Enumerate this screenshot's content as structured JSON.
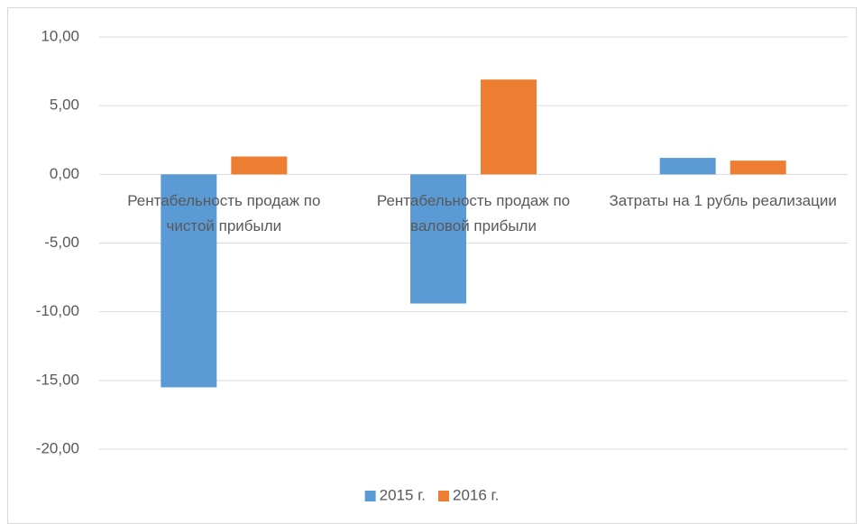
{
  "chart_data": {
    "type": "bar",
    "categories": [
      "Рентабельность продаж по чистой прибыли",
      "Рентабельность продаж по валовой прибыли",
      "Затраты на 1 рубль реализации"
    ],
    "series": [
      {
        "name": "2015 г.",
        "color": "#5b9bd5",
        "values": [
          -15.5,
          -9.4,
          1.2
        ]
      },
      {
        "name": "2016 г.",
        "color": "#ed7d31",
        "values": [
          1.3,
          6.9,
          1.0
        ]
      }
    ],
    "ylim": [
      -20,
      10
    ],
    "yticks": [
      {
        "value": -20,
        "label": "-20,00"
      },
      {
        "value": -15,
        "label": "-15,00"
      },
      {
        "value": -10,
        "label": "-10,00"
      },
      {
        "value": -5,
        "label": "-5,00"
      },
      {
        "value": 0,
        "label": "0,00"
      },
      {
        "value": 5,
        "label": "5,00"
      },
      {
        "value": 10,
        "label": "10,00"
      }
    ],
    "grid": true,
    "legend": "bottom"
  }
}
